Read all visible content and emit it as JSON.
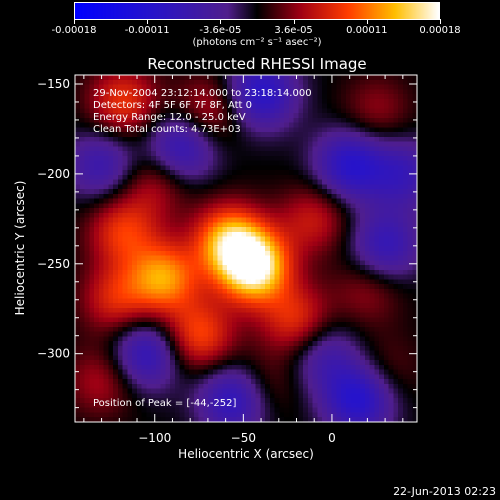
{
  "chart_data": {
    "type": "heatmap",
    "title": "Reconstructed RHESSI Image",
    "xlabel": "Heliocentric X (arcsec)",
    "ylabel": "Heliocentric Y (arcsec)",
    "xlim": [
      -145,
      48
    ],
    "ylim": [
      -338,
      -145
    ],
    "x_ticks": [
      -100,
      -50,
      0
    ],
    "y_ticks": [
      -150,
      -200,
      -250,
      -300
    ],
    "colorbar": {
      "range": [
        -0.00018,
        0.00018
      ],
      "tick_labels": [
        "-0.00018",
        "-0.00011",
        "-3.6e-05",
        "3.6e-05",
        "0.00011",
        "0.00018"
      ],
      "units_line": "(photons cm⁻² s⁻¹ asec⁻²)"
    },
    "annotations": [
      "29-Nov-2004 23:12:14.000 to 23:18:14.000",
      "Detectors: 4F 5F 6F 7F 8F, Att 0",
      "Energy Range: 12.0 - 25.0 keV",
      "Clean    Total counts: 4.73E+03"
    ],
    "peak_label": "Position of Peak = [-44,-252]",
    "peak": [
      -44,
      -252
    ],
    "peak_value": 0.00018,
    "sources": [
      {
        "x": -44,
        "y": -252,
        "value": 0.00018
      },
      {
        "x": -58,
        "y": -237,
        "value": 0.00013
      },
      {
        "x": -95,
        "y": -258,
        "value": 0.00012
      },
      {
        "x": -118,
        "y": -232,
        "value": 8e-05
      },
      {
        "x": -122,
        "y": -270,
        "value": 7e-05
      },
      {
        "x": -75,
        "y": -290,
        "value": 9e-05
      },
      {
        "x": -20,
        "y": -282,
        "value": 8e-05
      },
      {
        "x": -118,
        "y": -160,
        "value": 8e-05
      },
      {
        "x": -70,
        "y": -165,
        "value": 6e-05
      },
      {
        "x": -10,
        "y": -225,
        "value": 6e-05
      },
      {
        "x": 25,
        "y": -165,
        "value": 4e-05
      },
      {
        "x": -100,
        "y": -205,
        "value": 5e-05
      },
      {
        "x": 20,
        "y": -265,
        "value": 4e-05
      },
      {
        "x": -130,
        "y": -315,
        "value": 5e-05
      },
      {
        "x": 30,
        "y": -310,
        "value": 3e-05
      },
      {
        "x": -40,
        "y": -318,
        "value": 4e-05
      },
      {
        "x": -85,
        "y": -185,
        "value": -9e-05
      },
      {
        "x": -40,
        "y": -155,
        "value": -0.0001
      },
      {
        "x": 10,
        "y": -195,
        "value": -0.0001
      },
      {
        "x": 30,
        "y": -240,
        "value": -8e-05
      },
      {
        "x": -130,
        "y": -195,
        "value": -7e-05
      },
      {
        "x": -105,
        "y": -300,
        "value": -9e-05
      },
      {
        "x": -55,
        "y": -325,
        "value": -0.0001
      },
      {
        "x": 15,
        "y": -325,
        "value": -0.00011
      },
      {
        "x": -5,
        "y": -300,
        "value": -6e-05
      },
      {
        "x": 40,
        "y": -200,
        "value": -7e-05
      }
    ]
  },
  "footer_timestamp": "22-Jun-2013 02:23"
}
